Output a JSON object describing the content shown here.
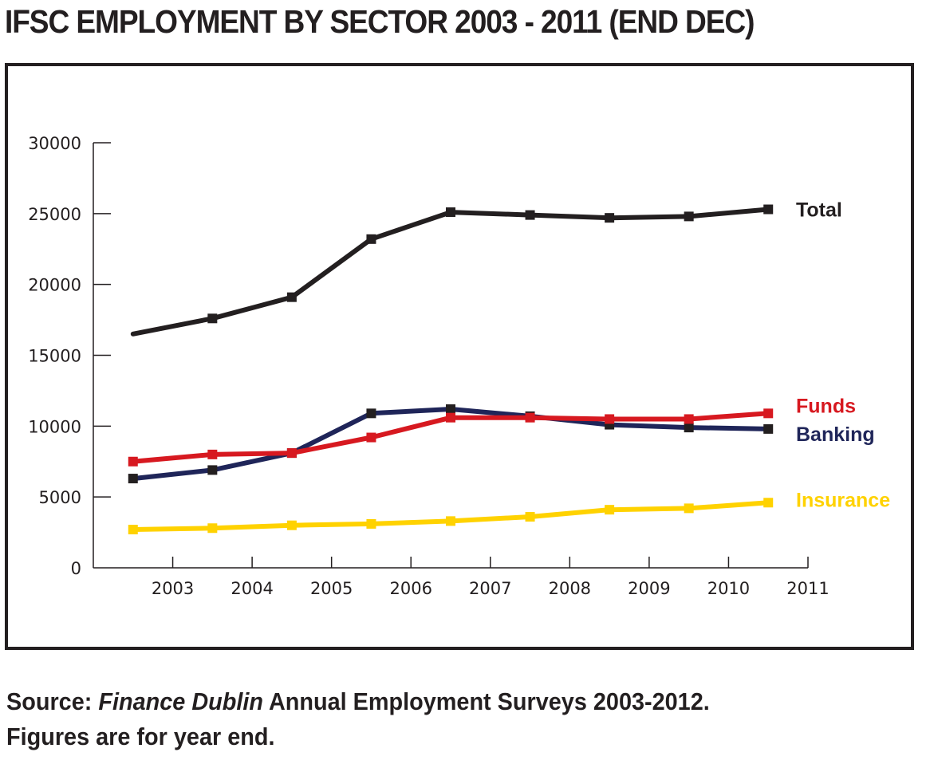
{
  "chart_data": {
    "type": "line",
    "title": "IFSC EMPLOYMENT BY SECTOR 2003 - 2011 (END DEC)",
    "xlabel": "",
    "ylabel": "",
    "ylim": [
      0,
      30000
    ],
    "y_ticks": [
      "0",
      "5000",
      "10000",
      "15000",
      "20000",
      "25000",
      "30000"
    ],
    "y_tick_values": [
      0,
      5000,
      10000,
      15000,
      20000,
      25000,
      30000
    ],
    "x_ticks": [
      "2003",
      "2004",
      "2005",
      "2006",
      "2007",
      "2008",
      "2009",
      "2010",
      "2011"
    ],
    "x_tick_values": [
      2003,
      2004,
      2005,
      2006,
      2007,
      2008,
      2009,
      2010,
      2011
    ],
    "xlim": [
      2002,
      2011
    ],
    "x": [
      2002.5,
      2003.5,
      2004.5,
      2005.5,
      2006.5,
      2007.5,
      2008.5,
      2009.5,
      2010.5
    ],
    "grid": false,
    "legend_placement": "right, inline at line ends",
    "series": [
      {
        "name": "Total",
        "color": "#231f20",
        "marker_color": "#231f20",
        "first_marker": false,
        "values": [
          16500,
          17600,
          19100,
          23200,
          25100,
          24900,
          24700,
          24800,
          25300
        ]
      },
      {
        "name": "Funds",
        "color": "#d71920",
        "marker_color": "#d71920",
        "first_marker": true,
        "values": [
          7500,
          8000,
          8100,
          9200,
          10600,
          10600,
          10500,
          10500,
          10900
        ]
      },
      {
        "name": "Banking",
        "color": "#1f2559",
        "marker_color": "#231f20",
        "first_marker": true,
        "values": [
          6300,
          6900,
          8100,
          10900,
          11200,
          10700,
          10100,
          9900,
          9800
        ]
      },
      {
        "name": "Insurance",
        "color": "#ffd200",
        "marker_color": "#ffd200",
        "first_marker": true,
        "values": [
          2700,
          2800,
          3000,
          3100,
          3300,
          3600,
          4100,
          4200,
          4600
        ]
      }
    ]
  },
  "footer": {
    "source_label": "Source:",
    "source_publication": "Finance Dublin",
    "source_rest": "Annual Employment Surveys 2003-2012.",
    "note": "Figures are for year end."
  }
}
